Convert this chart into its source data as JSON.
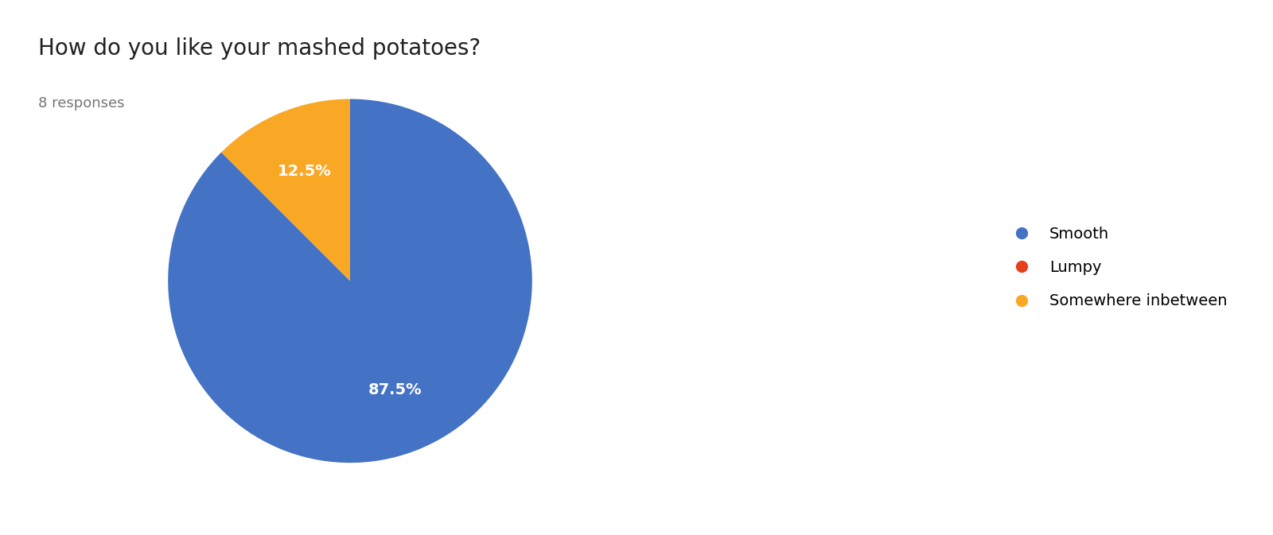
{
  "title": "How do you like your mashed potatoes?",
  "subtitle": "8 responses",
  "labels": [
    "Smooth",
    "Lumpy",
    "Somewhere inbetween"
  ],
  "values": [
    87.5,
    0,
    12.5
  ],
  "colors": [
    "#4472C4",
    "#E8401C",
    "#F9A825"
  ],
  "legend_labels": [
    "Smooth",
    "Lumpy",
    "Somewhere inbetween"
  ],
  "legend_colors": [
    "#4472C4",
    "#E8401C",
    "#F9A825"
  ],
  "background_color": "#ffffff",
  "title_fontsize": 20,
  "subtitle_fontsize": 13,
  "pct_fontsize": 14,
  "legend_fontsize": 14
}
